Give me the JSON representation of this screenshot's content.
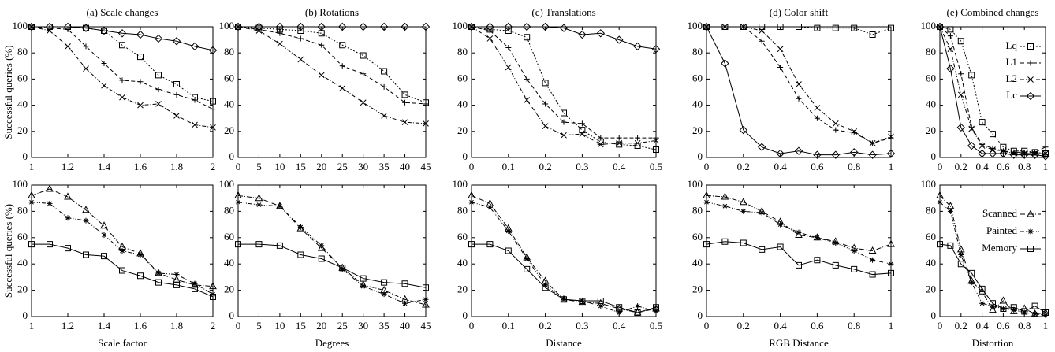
{
  "chart_data": [
    {
      "type": "line",
      "title": "(a) Scale changes",
      "ylabel": "Successful queries (%)",
      "x": [
        1,
        1.1,
        1.2,
        1.3,
        1.4,
        1.5,
        1.6,
        1.7,
        1.8,
        1.9,
        2
      ],
      "xlim": [
        1,
        2
      ],
      "xticks": [
        1,
        1.2,
        1.4,
        1.6,
        1.8,
        2
      ],
      "ylim": [
        0,
        100
      ],
      "yticks": [
        0,
        20,
        40,
        60,
        80,
        100
      ],
      "series": [
        {
          "color": "#000000",
          "marker": "square",
          "dash": "2,2",
          "values": [
            100,
            100,
            100,
            99,
            97,
            86,
            77,
            63,
            56,
            46,
            43
          ]
        },
        {
          "color": "#000000",
          "marker": "plus",
          "dash": "5,3",
          "values": [
            100,
            99,
            98,
            85,
            72,
            59,
            58,
            52,
            48,
            44,
            37
          ]
        },
        {
          "color": "#000000",
          "marker": "cross",
          "dash": "5,2,1,2",
          "values": [
            100,
            97,
            85,
            68,
            55,
            46,
            40,
            41,
            32,
            25,
            23
          ]
        },
        {
          "color": "#000000",
          "marker": "diamond",
          "dash": "none",
          "values": [
            100,
            100,
            100,
            99,
            97,
            95,
            94,
            91,
            89,
            85,
            82
          ]
        }
      ]
    },
    {
      "type": "line",
      "title": "(b) Rotations",
      "x": [
        0,
        5,
        10,
        15,
        20,
        25,
        30,
        35,
        40,
        45
      ],
      "xlim": [
        0,
        45
      ],
      "xticks": [
        0,
        5,
        10,
        15,
        20,
        25,
        30,
        35,
        40,
        45
      ],
      "ylim": [
        0,
        100
      ],
      "yticks": [
        0,
        20,
        40,
        60,
        80,
        100
      ],
      "series": [
        {
          "color": "#000000",
          "marker": "square",
          "dash": "2,2",
          "values": [
            100,
            99,
            98,
            97,
            95,
            86,
            78,
            66,
            48,
            42
          ]
        },
        {
          "color": "#000000",
          "marker": "plus",
          "dash": "5,3",
          "values": [
            100,
            98,
            95,
            91,
            86,
            70,
            64,
            54,
            42,
            41
          ]
        },
        {
          "color": "#000000",
          "marker": "cross",
          "dash": "5,2,1,2",
          "values": [
            100,
            97,
            87,
            75,
            63,
            53,
            42,
            32,
            27,
            26
          ]
        },
        {
          "color": "#000000",
          "marker": "diamond",
          "dash": "none",
          "values": [
            100,
            100,
            100,
            100,
            100,
            100,
            100,
            100,
            100,
            100
          ]
        }
      ]
    },
    {
      "type": "line",
      "title": "(c) Translations",
      "x": [
        0,
        0.05,
        0.1,
        0.15,
        0.2,
        0.25,
        0.3,
        0.35,
        0.4,
        0.45,
        0.5
      ],
      "xlim": [
        0,
        0.5
      ],
      "xticks": [
        0,
        0.1,
        0.2,
        0.3,
        0.4,
        0.5
      ],
      "ylim": [
        0,
        100
      ],
      "yticks": [
        0,
        20,
        40,
        60,
        80,
        100
      ],
      "series": [
        {
          "color": "#000000",
          "marker": "square",
          "dash": "2,2",
          "values": [
            100,
            98,
            97,
            92,
            57,
            34,
            21,
            12,
            10,
            9,
            6
          ]
        },
        {
          "color": "#000000",
          "marker": "plus",
          "dash": "5,3",
          "values": [
            100,
            97,
            84,
            60,
            41,
            27,
            26,
            15,
            15,
            15,
            15
          ]
        },
        {
          "color": "#000000",
          "marker": "cross",
          "dash": "5,2,1,2",
          "values": [
            100,
            91,
            69,
            44,
            24,
            17,
            18,
            10,
            11,
            11,
            13
          ]
        },
        {
          "color": "#000000",
          "marker": "diamond",
          "dash": "none",
          "values": [
            100,
            100,
            100,
            100,
            100,
            99,
            94,
            95,
            90,
            85,
            83
          ]
        }
      ]
    },
    {
      "type": "line",
      "title": "(d) Color shift",
      "x": [
        0,
        0.1,
        0.2,
        0.3,
        0.4,
        0.5,
        0.6,
        0.7,
        0.8,
        0.9,
        1
      ],
      "xlim": [
        0,
        1
      ],
      "xticks": [
        0,
        0.2,
        0.4,
        0.6,
        0.8,
        1
      ],
      "ylim": [
        0,
        100
      ],
      "yticks": [
        0,
        20,
        40,
        60,
        80,
        100
      ],
      "series": [
        {
          "color": "#000000",
          "marker": "square",
          "dash": "2,2",
          "values": [
            100,
            100,
            100,
            100,
            100,
            100,
            99,
            99,
            99,
            94,
            99
          ]
        },
        {
          "color": "#000000",
          "marker": "plus",
          "dash": "5,3",
          "values": [
            100,
            100,
            100,
            89,
            69,
            45,
            30,
            21,
            19,
            11,
            15
          ]
        },
        {
          "color": "#000000",
          "marker": "cross",
          "dash": "5,2,1,2",
          "values": [
            100,
            100,
            100,
            97,
            83,
            56,
            38,
            26,
            20,
            11,
            16
          ]
        },
        {
          "color": "#000000",
          "marker": "diamond",
          "dash": "none",
          "values": [
            100,
            72,
            21,
            8,
            3,
            5,
            2,
            2,
            4,
            2,
            3
          ]
        }
      ]
    },
    {
      "type": "line",
      "title": "(e) Combined changes",
      "x": [
        0,
        0.1,
        0.2,
        0.3,
        0.4,
        0.5,
        0.6,
        0.7,
        0.8,
        0.9,
        1
      ],
      "xlim": [
        0,
        1
      ],
      "xticks": [
        0,
        0.2,
        0.4,
        0.6,
        0.8,
        1
      ],
      "ylim": [
        0,
        100
      ],
      "yticks": [
        0,
        20,
        40,
        60,
        80,
        100
      ],
      "legend": "upper right",
      "series": [
        {
          "name": "Lq",
          "color": "#000000",
          "marker": "square",
          "dash": "2,2",
          "values": [
            100,
            98,
            89,
            63,
            27,
            18,
            8,
            5,
            5,
            4,
            3
          ]
        },
        {
          "name": "L1",
          "color": "#000000",
          "marker": "plus",
          "dash": "5,3",
          "values": [
            100,
            93,
            64,
            23,
            10,
            7,
            5,
            4,
            4,
            4,
            8
          ]
        },
        {
          "name": "L2",
          "color": "#000000",
          "marker": "cross",
          "dash": "5,2,1,2",
          "values": [
            100,
            83,
            48,
            22,
            9,
            6,
            5,
            3,
            3,
            3,
            3
          ]
        },
        {
          "name": "Lc",
          "color": "#000000",
          "marker": "diamond",
          "dash": "none",
          "values": [
            100,
            68,
            23,
            9,
            3,
            3,
            3,
            2,
            2,
            2,
            1
          ]
        }
      ]
    },
    {
      "type": "line",
      "xlabel": "Scale factor",
      "ylabel": "Successful queries (%)",
      "x": [
        1,
        1.1,
        1.2,
        1.3,
        1.4,
        1.5,
        1.6,
        1.7,
        1.8,
        1.9,
        2
      ],
      "xlim": [
        1,
        2
      ],
      "xticks": [
        1,
        1.2,
        1.4,
        1.6,
        1.8,
        2
      ],
      "ylim": [
        0,
        100
      ],
      "yticks": [
        0,
        20,
        40,
        60,
        80,
        100
      ],
      "series": [
        {
          "color": "#000000",
          "marker": "triangle",
          "dash": "6,2,1,2",
          "values": [
            92,
            97,
            91,
            81,
            69,
            53,
            48,
            33,
            28,
            24,
            23
          ]
        },
        {
          "color": "#000000",
          "marker": "star",
          "dash": "5,2,1,2,1,2",
          "values": [
            87,
            86,
            75,
            73,
            62,
            50,
            47,
            33,
            32,
            25,
            17
          ]
        },
        {
          "color": "#000000",
          "marker": "square",
          "dash": "none",
          "values": [
            55,
            55,
            52,
            47,
            46,
            35,
            31,
            26,
            24,
            21,
            15
          ]
        }
      ]
    },
    {
      "type": "line",
      "xlabel": "Degrees",
      "x": [
        0,
        5,
        10,
        15,
        20,
        25,
        30,
        35,
        40,
        45
      ],
      "xlim": [
        0,
        45
      ],
      "xticks": [
        0,
        5,
        10,
        15,
        20,
        25,
        30,
        35,
        40,
        45
      ],
      "ylim": [
        0,
        100
      ],
      "yticks": [
        0,
        20,
        40,
        60,
        80,
        100
      ],
      "series": [
        {
          "color": "#000000",
          "marker": "triangle",
          "dash": "6,2,1,2",
          "values": [
            92,
            90,
            84,
            67,
            52,
            37,
            24,
            20,
            13,
            9
          ]
        },
        {
          "color": "#000000",
          "marker": "star",
          "dash": "5,2,1,2,1,2",
          "values": [
            87,
            85,
            84,
            68,
            54,
            36,
            23,
            17,
            10,
            13
          ]
        },
        {
          "color": "#000000",
          "marker": "square",
          "dash": "none",
          "values": [
            55,
            55,
            54,
            47,
            44,
            37,
            29,
            26,
            25,
            22
          ]
        }
      ]
    },
    {
      "type": "line",
      "xlabel": "Distance",
      "x": [
        0,
        0.05,
        0.1,
        0.15,
        0.2,
        0.25,
        0.3,
        0.35,
        0.4,
        0.45,
        0.5
      ],
      "xlim": [
        0,
        0.5
      ],
      "xticks": [
        0,
        0.1,
        0.2,
        0.3,
        0.4,
        0.5
      ],
      "ylim": [
        0,
        100
      ],
      "yticks": [
        0,
        20,
        40,
        60,
        80,
        100
      ],
      "series": [
        {
          "color": "#000000",
          "marker": "triangle",
          "dash": "6,2,1,2",
          "values": [
            92,
            86,
            67,
            45,
            27,
            13,
            11,
            10,
            6,
            3,
            6
          ]
        },
        {
          "color": "#000000",
          "marker": "star",
          "dash": "5,2,1,2,1,2",
          "values": [
            87,
            83,
            65,
            44,
            24,
            13,
            12,
            8,
            3,
            8,
            4
          ]
        },
        {
          "color": "#000000",
          "marker": "square",
          "dash": "none",
          "values": [
            55,
            55,
            50,
            36,
            22,
            13,
            12,
            12,
            7,
            3,
            7
          ]
        }
      ]
    },
    {
      "type": "line",
      "xlabel": "RGB Distance",
      "x": [
        0,
        0.1,
        0.2,
        0.3,
        0.4,
        0.5,
        0.6,
        0.7,
        0.8,
        0.9,
        1
      ],
      "xlim": [
        0,
        1
      ],
      "xticks": [
        0,
        0.2,
        0.4,
        0.6,
        0.8,
        1
      ],
      "ylim": [
        0,
        100
      ],
      "yticks": [
        0,
        20,
        40,
        60,
        80,
        100
      ],
      "series": [
        {
          "color": "#000000",
          "marker": "triangle",
          "dash": "6,2,1,2",
          "values": [
            92,
            91,
            87,
            80,
            72,
            62,
            60,
            57,
            52,
            50,
            55
          ]
        },
        {
          "color": "#000000",
          "marker": "star",
          "dash": "5,2,1,2,1,2",
          "values": [
            87,
            84,
            80,
            79,
            70,
            64,
            60,
            56,
            50,
            43,
            40
          ]
        },
        {
          "color": "#000000",
          "marker": "square",
          "dash": "none",
          "values": [
            55,
            57,
            56,
            51,
            53,
            39,
            43,
            39,
            36,
            32,
            33
          ]
        }
      ]
    },
    {
      "type": "line",
      "xlabel": "Distortion",
      "x": [
        0,
        0.1,
        0.2,
        0.3,
        0.4,
        0.5,
        0.6,
        0.7,
        0.8,
        0.9,
        1
      ],
      "xlim": [
        0,
        1
      ],
      "xticks": [
        0,
        0.2,
        0.4,
        0.6,
        0.8,
        1
      ],
      "ylim": [
        0,
        100
      ],
      "yticks": [
        0,
        20,
        40,
        60,
        80,
        100
      ],
      "legend": "upper right",
      "series": [
        {
          "name": "Scanned",
          "color": "#000000",
          "marker": "triangle",
          "dash": "6,2,1,2",
          "values": [
            92,
            84,
            51,
            27,
            19,
            5,
            12,
            4,
            6,
            2,
            3
          ]
        },
        {
          "name": "Painted",
          "color": "#000000",
          "marker": "star",
          "dash": "5,2,1,2,1,2",
          "values": [
            87,
            80,
            47,
            26,
            10,
            8,
            6,
            5,
            3,
            2,
            1
          ]
        },
        {
          "name": "Memory",
          "color": "#000000",
          "marker": "square",
          "dash": "none",
          "values": [
            55,
            54,
            40,
            33,
            21,
            10,
            6,
            7,
            4,
            8,
            3
          ]
        }
      ]
    }
  ]
}
